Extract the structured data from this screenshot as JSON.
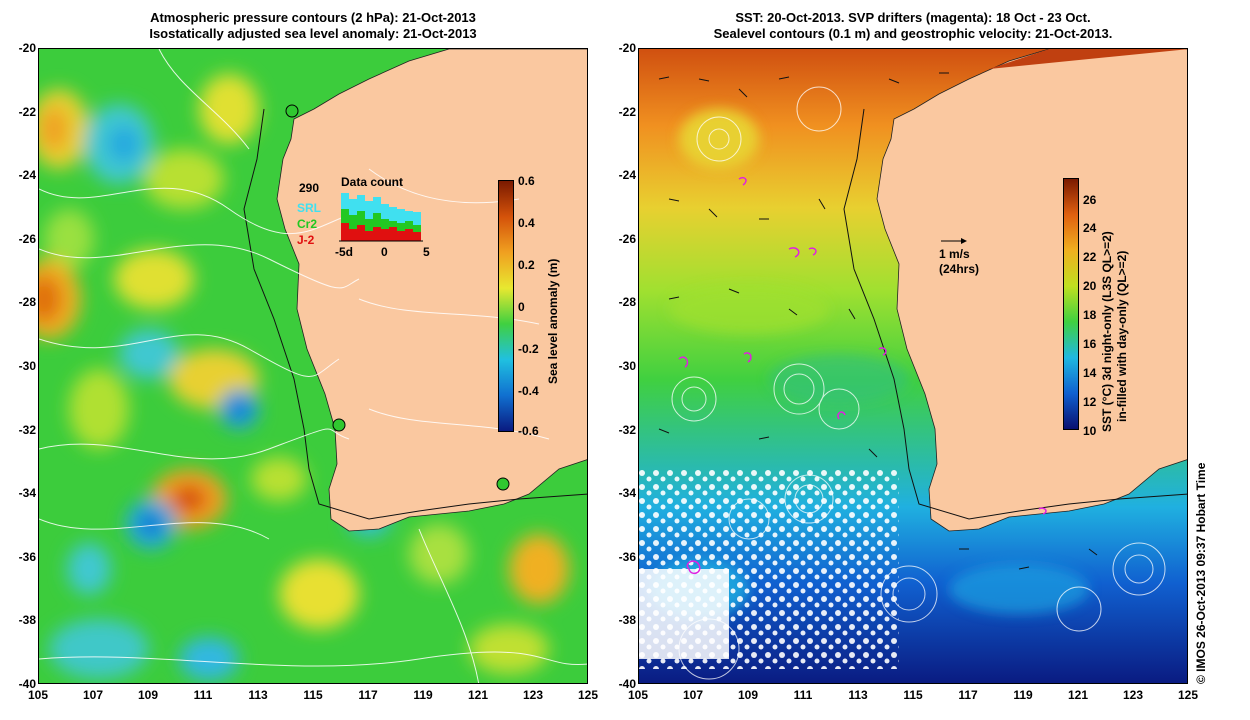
{
  "left_panel": {
    "title_line1": "Atmospheric pressure contours (2 hPa): 21-Oct-2013",
    "title_line2": "Isostatically adjusted sea level anomaly: 21-Oct-2013",
    "colorbar_label": "Sea level anomaly (m)",
    "colorbar_ticks": [
      "0.6",
      "0.4",
      "0.2",
      "0",
      "-0.2",
      "-0.4",
      "-0.6"
    ],
    "inset": {
      "title": "Data count",
      "count": "290",
      "legend": [
        {
          "label": "SRL",
          "color": "#40e0f0"
        },
        {
          "label": "Cr2",
          "color": "#22c822"
        },
        {
          "label": "J-2",
          "color": "#e01010"
        }
      ],
      "xticks": [
        "-5d",
        "0",
        "5"
      ]
    }
  },
  "right_panel": {
    "title_line1": "SST: 20-Oct-2013. SVP drifters (magenta): 18 Oct - 23 Oct.",
    "title_line2": "Sealevel contours (0.1 m) and geostrophic velocity: 21-Oct-2013.",
    "colorbar_label_line1": "SST (°C) 3d night-only (L3S QL>=2)",
    "colorbar_label_line2": "in-filled with day-only (QL>=2)",
    "colorbar_ticks": [
      "26",
      "24",
      "22",
      "20",
      "18",
      "16",
      "14",
      "12",
      "10"
    ],
    "scale_arrow_label1": "1 m/s",
    "scale_arrow_label2": "(24hrs)"
  },
  "axes": {
    "y_ticks": [
      "-20",
      "-22",
      "-24",
      "-26",
      "-28",
      "-30",
      "-32",
      "-34",
      "-36",
      "-38",
      "-40"
    ],
    "x_ticks": [
      "105",
      "107",
      "109",
      "111",
      "113",
      "115",
      "117",
      "119",
      "121",
      "123",
      "125"
    ]
  },
  "credit": "© IMOS 26-Oct-2013 09:37 Hobart Time",
  "colors": {
    "land": "#fac8a0",
    "sla_ramp": [
      "#7a1a00",
      "#d4520a",
      "#f0a020",
      "#e8e830",
      "#40d040",
      "#20c0e0",
      "#1070d0",
      "#0a1a80"
    ],
    "sst_ramp": [
      "#7a1a00",
      "#e06010",
      "#f0b020",
      "#c0e020",
      "#40d040",
      "#20b8e0",
      "#1060d0",
      "#0a1070"
    ],
    "drifters": "#e020e0"
  }
}
